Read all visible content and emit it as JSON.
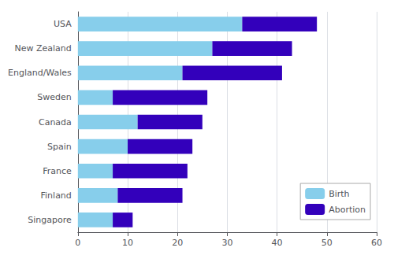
{
  "chart_data": {
    "type": "bar",
    "orientation": "horizontal",
    "stacked": true,
    "categories": [
      "USA",
      "New Zealand",
      "England/Wales",
      "Sweden",
      "Canada",
      "Spain",
      "France",
      "Finland",
      "Singapore"
    ],
    "series": [
      {
        "name": "Birth",
        "color": "#87CEEB",
        "values": [
          33,
          27,
          21,
          7,
          12,
          10,
          7,
          8,
          7
        ]
      },
      {
        "name": "Abortion",
        "color": "#3300BB",
        "values": [
          15,
          16,
          20,
          19,
          13,
          13,
          15,
          13,
          4
        ]
      }
    ],
    "xlim": [
      0,
      60
    ],
    "xticks": [
      0,
      10,
      20,
      30,
      40,
      50,
      60
    ],
    "grid": true,
    "legend": "lower right"
  }
}
